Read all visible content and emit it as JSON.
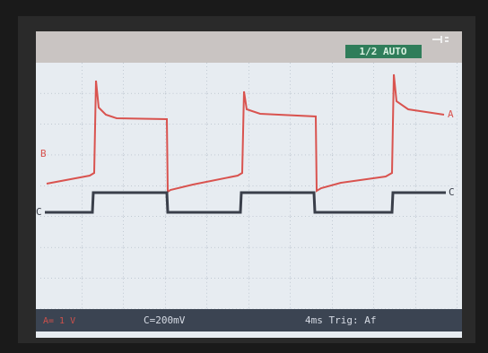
{
  "header": {
    "mode": "1/2 AUTO"
  },
  "traces": [
    {
      "label_left": "B",
      "label_right": "A"
    },
    {
      "label_left": "C",
      "label_right": "C"
    }
  ],
  "footer": {
    "channel_a": "A= 1 V",
    "channel_c": "C=200mV",
    "timebase": "4ms Trig: Af"
  }
}
